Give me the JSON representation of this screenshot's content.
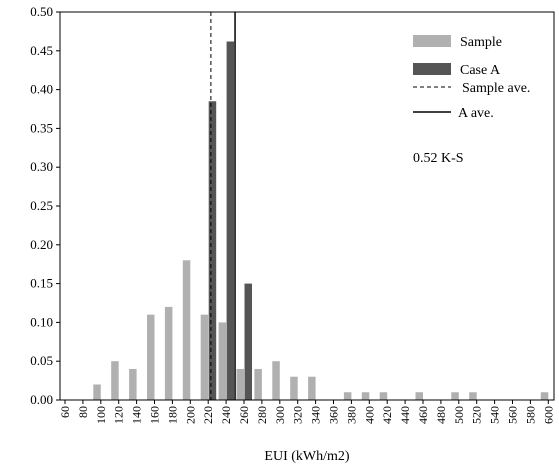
{
  "chart_data": {
    "type": "bar",
    "title": "",
    "xlabel": "EUI (kWh/m2)",
    "ylabel": "",
    "ylim": [
      0,
      0.5
    ],
    "yticks": [
      "0.00",
      "0.05",
      "0.10",
      "0.15",
      "0.20",
      "0.25",
      "0.30",
      "0.35",
      "0.40",
      "0.45",
      "0.50"
    ],
    "categories": [
      "60",
      "80",
      "100",
      "120",
      "140",
      "160",
      "180",
      "200",
      "220",
      "240",
      "260",
      "280",
      "300",
      "320",
      "340",
      "360",
      "380",
      "400",
      "420",
      "440",
      "460",
      "480",
      "500",
      "520",
      "540",
      "560",
      "580",
      "600"
    ],
    "series": [
      {
        "name": "Sample",
        "color": "#b0b0b0",
        "values": [
          0,
          0,
          0.02,
          0.05,
          0.04,
          0.11,
          0.12,
          0.18,
          0.11,
          0.1,
          0.04,
          0.04,
          0.05,
          0.03,
          0.03,
          0,
          0.01,
          0.01,
          0.01,
          0,
          0.01,
          0,
          0.01,
          0.01,
          0,
          0,
          0,
          0.01
        ]
      },
      {
        "name": "Case A",
        "color": "#555555",
        "values": [
          0,
          0,
          0,
          0,
          0,
          0,
          0,
          0,
          0.385,
          0.462,
          0.15,
          0,
          0,
          0,
          0,
          0,
          0,
          0,
          0,
          0,
          0,
          0,
          0,
          0,
          0,
          0,
          0,
          0
        ]
      }
    ],
    "reference_lines": [
      {
        "name": "Sample ave.",
        "style": "dashed",
        "x": 223
      },
      {
        "name": "A ave.",
        "style": "solid",
        "x": 250
      }
    ],
    "annotation": "0.52 K-S",
    "legend_position": "top-right",
    "grid": false
  }
}
